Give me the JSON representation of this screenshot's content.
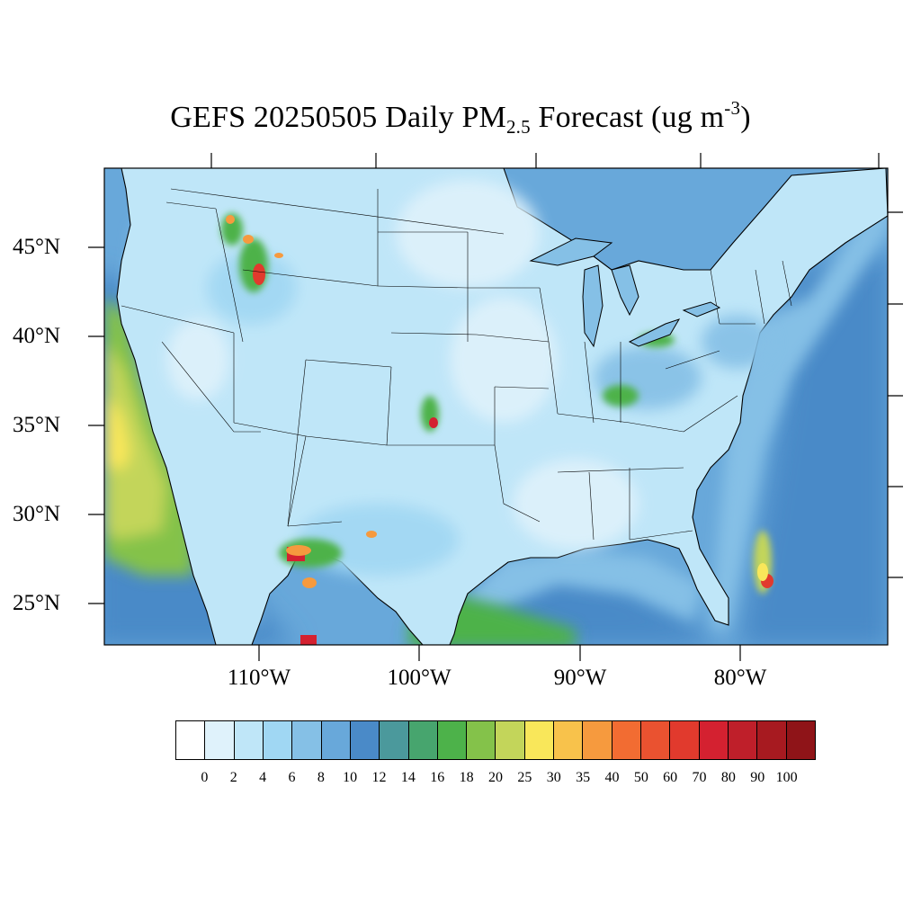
{
  "title": {
    "pre": "GEFS 20250505 Daily PM",
    "sub": "2.5",
    "mid": " Forecast (ug m",
    "sup": "-3",
    "post": ")"
  },
  "lat_labels": [
    "45°N",
    "40°N",
    "35°N",
    "30°N",
    "25°N"
  ],
  "lon_labels": [
    "110°W",
    "100°W",
    "90°W",
    "80°W"
  ],
  "legend": {
    "colors": [
      "#ffffff",
      "#dff2fb",
      "#bfe6f8",
      "#a0d7f3",
      "#85c0e6",
      "#68a8da",
      "#4a8ac8",
      "#4b999c",
      "#47a56e",
      "#4db24a",
      "#84c24a",
      "#c3d55a",
      "#f9e75a",
      "#f8c24b",
      "#f69a3e",
      "#f26c32",
      "#ea5230",
      "#e13a2d",
      "#d42130",
      "#bf1f2a",
      "#a71a20",
      "#8f1418"
    ],
    "ticks": [
      "0",
      "2",
      "4",
      "6",
      "8",
      "10",
      "12",
      "14",
      "16",
      "18",
      "20",
      "25",
      "30",
      "35",
      "40",
      "50",
      "60",
      "70",
      "80",
      "90",
      "100"
    ]
  },
  "map": {
    "ocean_colors": {
      "near": "#85c0e6",
      "mid": "#68a8da",
      "far": "#4a8ac8"
    },
    "land_color": "#bfe6f8",
    "boundary_color": "#000000"
  }
}
